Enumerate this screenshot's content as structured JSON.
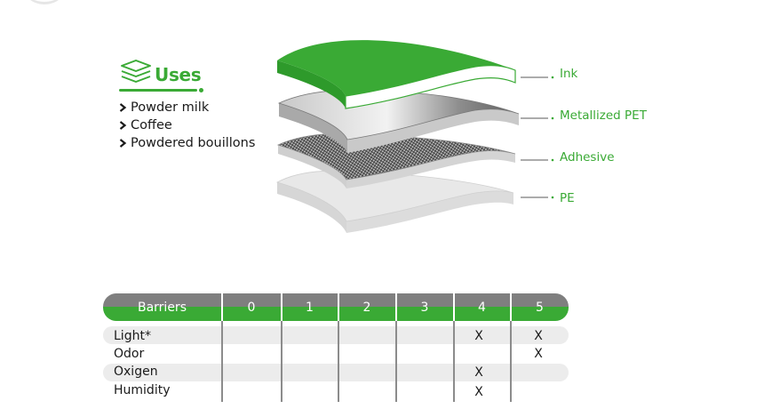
{
  "uses": {
    "icon": "layers-stack-icon",
    "title": "Uses",
    "items": [
      "Powder milk",
      "Coffee",
      "Powdered bouillons"
    ]
  },
  "layers": [
    {
      "label": "Ink",
      "color": "#3aaa35"
    },
    {
      "label": "Metallized PET",
      "color": "#9a9a9a"
    },
    {
      "label": "Adhesive",
      "color": "#555555"
    },
    {
      "label": "PE",
      "color": "#d9d9d9"
    }
  ],
  "barriers": {
    "header": "Barriers",
    "levels": [
      "0",
      "1",
      "2",
      "3",
      "4",
      "5"
    ],
    "rows": [
      {
        "label": "Light*",
        "marks": [
          "",
          "",
          "",
          "",
          "X",
          "X"
        ]
      },
      {
        "label": "Odor",
        "marks": [
          "",
          "",
          "",
          "",
          "",
          "X"
        ]
      },
      {
        "label": "Oxigen",
        "marks": [
          "",
          "",
          "",
          "",
          "X",
          ""
        ]
      },
      {
        "label": "Humidity",
        "marks": [
          "",
          "",
          "",
          "",
          "X",
          ""
        ]
      }
    ]
  },
  "colors": {
    "accent": "#3aaa35",
    "header_grey": "#7f7f7f",
    "row_band": "#ececec"
  }
}
